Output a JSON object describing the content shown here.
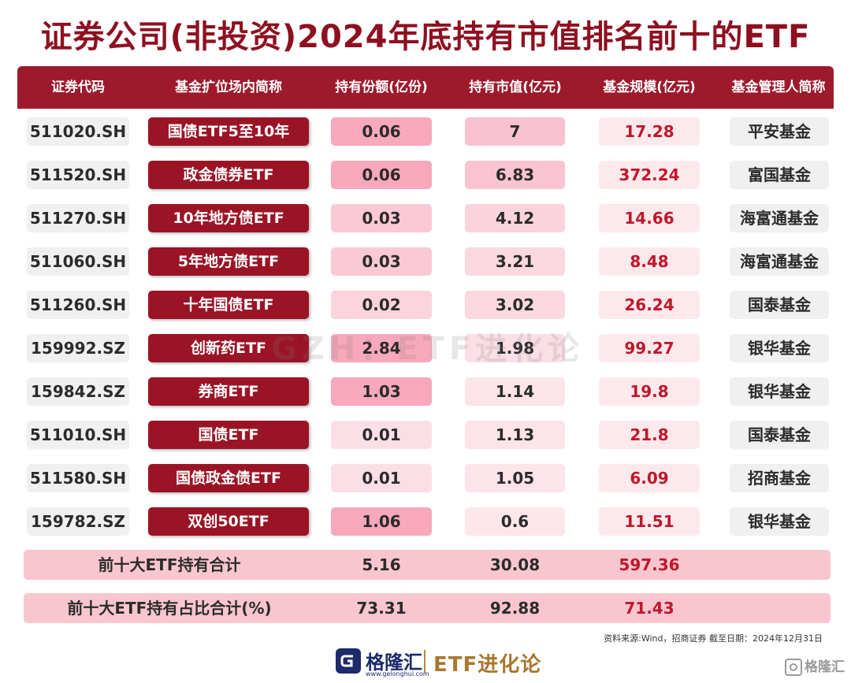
{
  "title": "证券公司(非投资)2024年底持有市值排名前十的ETF",
  "headers": [
    "证券代码",
    "基金扩位场内简称",
    "持有份额(亿份)",
    "持有市值(亿元)",
    "基金规模(亿元)",
    "基金管理人简称"
  ],
  "rows": [
    {
      "code": "511020.SH",
      "name": "国债ETF5至10年",
      "share": "0.06",
      "value": "7",
      "scale": "17.28",
      "manager": "平安基金",
      "share_intensity": 0.06,
      "value_intensity": 7
    },
    {
      "code": "511520.SH",
      "name": "政金债券ETF",
      "share": "0.06",
      "value": "6.83",
      "scale": "372.24",
      "manager": "富国基金",
      "share_intensity": 0.06,
      "value_intensity": 6.83
    },
    {
      "code": "511270.SH",
      "name": "10年地方债ETF",
      "share": "0.03",
      "value": "4.12",
      "scale": "14.66",
      "manager": "海富通基金",
      "share_intensity": 0.03,
      "value_intensity": 4.12
    },
    {
      "code": "511060.SH",
      "name": "5年地方债ETF",
      "share": "0.03",
      "value": "3.21",
      "scale": "8.48",
      "manager": "海富通基金",
      "share_intensity": 0.03,
      "value_intensity": 3.21
    },
    {
      "code": "511260.SH",
      "name": "十年国债ETF",
      "share": "0.02",
      "value": "3.02",
      "scale": "26.24",
      "manager": "国泰基金",
      "share_intensity": 0.02,
      "value_intensity": 3.02
    },
    {
      "code": "159992.SZ",
      "name": "创新药ETF",
      "share": "2.84",
      "value": "1.98",
      "scale": "99.27",
      "manager": "银华基金",
      "share_intensity": 2.84,
      "value_intensity": 1.98
    },
    {
      "code": "159842.SZ",
      "name": "券商ETF",
      "share": "1.03",
      "value": "1.14",
      "scale": "19.8",
      "manager": "银华基金",
      "share_intensity": 1.03,
      "value_intensity": 1.14
    },
    {
      "code": "511010.SH",
      "name": "国债ETF",
      "share": "0.01",
      "value": "1.13",
      "scale": "21.8",
      "manager": "国泰基金",
      "share_intensity": 0.01,
      "value_intensity": 1.13
    },
    {
      "code": "511580.SH",
      "name": "国债政金债ETF",
      "share": "0.01",
      "value": "1.05",
      "scale": "6.09",
      "manager": "招商基金",
      "share_intensity": 0.01,
      "value_intensity": 1.05
    },
    {
      "code": "159782.SZ",
      "name": "双创50ETF",
      "share": "1.06",
      "value": "0.6",
      "scale": "11.51",
      "manager": "银华基金",
      "share_intensity": 1.06,
      "value_intensity": 0.6
    }
  ],
  "summary": [
    {
      "label": "前十大ETF持有合计",
      "share": "5.16",
      "value": "30.08",
      "scale": "597.36"
    },
    {
      "label": "前十大ETF持有占比合计(%)",
      "share": "73.31",
      "value": "92.88",
      "scale": "71.43"
    }
  ],
  "watermark": "GZH：ETF进化论",
  "source": "资料来源:Wind，招商证券 截至日期：2024年12月31日",
  "footer": {
    "brand": "格隆汇",
    "domain": "www.gelonghui.com",
    "etf_brand": "ETF进化论",
    "corner": "格隆汇"
  },
  "colors": {
    "header": "#9d1a2c",
    "name_cell": "#9b1426",
    "scale_text": "#c0172a",
    "summary_bg": "#f9c6cf"
  }
}
